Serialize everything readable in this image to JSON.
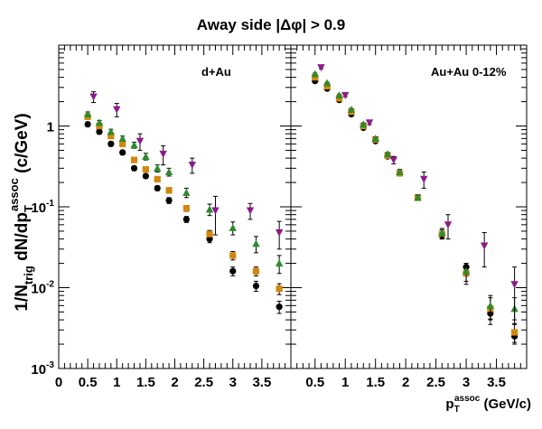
{
  "chart_data": {
    "type": "scatter",
    "title": "Away side |Δφ| > 0.9",
    "ylabel": {
      "prefix": "1/N",
      "prefix_sub": "trig",
      "middle": " dN/dp",
      "middle_sub": "T",
      "middle_sup": "assoc",
      "suffix": " (c/GeV)"
    },
    "xlabel": {
      "main": "p",
      "sub": "T",
      "sup": "assoc",
      "suffix": " (GeV/c)"
    },
    "y_scale": "log",
    "ylim": [
      0.001,
      10
    ],
    "y_ticks": [
      {
        "value": 0.001,
        "base": "10",
        "exp": "-3"
      },
      {
        "value": 0.01,
        "base": "10",
        "exp": "-2"
      },
      {
        "value": 0.1,
        "base": "10",
        "exp": "-1"
      },
      {
        "value": 1,
        "base": "1",
        "exp": ""
      }
    ],
    "panels": [
      {
        "label": "d+Au",
        "xlim": [
          0,
          4.0
        ],
        "x_tick_labels": [
          "0",
          "0.5",
          "1",
          "1.5",
          "2",
          "2.5",
          "3",
          "3.5"
        ],
        "x_tick_values": [
          0,
          0.5,
          1,
          1.5,
          2,
          2.5,
          3,
          3.5
        ],
        "series": [
          {
            "marker": "circle",
            "color": "#000000",
            "x": [
              0.5,
              0.7,
              0.9,
              1.1,
              1.3,
              1.5,
              1.7,
              1.9,
              2.2,
              2.6,
              3.0,
              3.4,
              3.8
            ],
            "y": [
              1.05,
              0.85,
              0.6,
              0.47,
              0.3,
              0.24,
              0.17,
              0.12,
              0.07,
              0.04,
              0.016,
              0.0105,
              0.0058
            ],
            "err": [
              0.07,
              0.06,
              0.04,
              0.03,
              0.02,
              0.015,
              0.012,
              0.01,
              0.006,
              0.004,
              0.002,
              0.0015,
              0.001
            ]
          },
          {
            "marker": "square",
            "color": "#d4870f",
            "x": [
              0.5,
              0.7,
              0.9,
              1.1,
              1.3,
              1.5,
              1.7,
              1.9,
              2.2,
              2.6,
              3.0,
              3.4,
              3.8
            ],
            "y": [
              1.3,
              1.0,
              0.75,
              0.6,
              0.38,
              0.29,
              0.22,
              0.16,
              0.096,
              0.046,
              0.025,
              0.016,
              0.0097
            ],
            "err": [
              0.08,
              0.07,
              0.05,
              0.04,
              0.025,
              0.02,
              0.015,
              0.012,
              0.008,
              0.005,
              0.003,
              0.002,
              0.0015
            ]
          },
          {
            "marker": "triangle-up",
            "color": "#2e8b2e",
            "x": [
              0.5,
              0.7,
              0.9,
              1.1,
              1.3,
              1.5,
              1.7,
              1.9,
              2.2,
              2.6,
              3.0,
              3.4,
              3.8
            ],
            "y": [
              1.4,
              1.1,
              0.85,
              0.7,
              0.58,
              0.42,
              0.3,
              0.27,
              0.15,
              0.093,
              0.055,
              0.035,
              0.02
            ],
            "err": [
              0.09,
              0.07,
              0.06,
              0.05,
              0.05,
              0.04,
              0.03,
              0.03,
              0.02,
              0.015,
              0.01,
              0.008,
              0.005
            ]
          },
          {
            "marker": "triangle-down",
            "color": "#8b1a8b",
            "x": [
              0.6,
              1.0,
              1.4,
              1.8,
              2.3,
              2.7,
              3.3,
              3.8
            ],
            "y": [
              2.3,
              1.6,
              0.65,
              0.45,
              0.33,
              0.09,
              0.09,
              0.048
            ],
            "err": [
              0.35,
              0.3,
              0.15,
              0.12,
              0.07,
              0.045,
              0.02,
              0.018
            ]
          }
        ]
      },
      {
        "label": "Au+Au 0-12%",
        "xlim": [
          0.1,
          4.0
        ],
        "x_tick_labels": [
          "0.5",
          "1",
          "1.5",
          "2",
          "2.5",
          "3",
          "3.5"
        ],
        "x_tick_values": [
          0.5,
          1,
          1.5,
          2,
          2.5,
          3,
          3.5
        ],
        "series": [
          {
            "marker": "circle",
            "color": "#000000",
            "x": [
              0.5,
              0.7,
              0.9,
              1.1,
              1.3,
              1.5,
              1.7,
              1.9,
              2.2,
              2.6,
              3.0,
              3.4,
              3.8
            ],
            "y": [
              3.6,
              2.9,
              2.1,
              1.4,
              0.95,
              0.65,
              0.42,
              0.26,
              0.13,
              0.044,
              0.018,
              0.0048,
              0.0025
            ],
            "err": [
              0.1,
              0.08,
              0.06,
              0.05,
              0.04,
              0.03,
              0.02,
              0.02,
              0.01,
              0.004,
              0.002,
              0.0007,
              0.0004
            ]
          },
          {
            "marker": "square",
            "color": "#d4870f",
            "x": [
              0.5,
              0.7,
              0.9,
              1.1,
              1.3,
              1.5,
              1.7,
              1.9,
              2.2,
              2.6,
              3.0,
              3.4,
              3.8
            ],
            "y": [
              4.0,
              3.1,
              2.2,
              1.5,
              1.0,
              0.68,
              0.43,
              0.26,
              0.13,
              0.046,
              0.015,
              0.0055,
              0.0028
            ],
            "err": [
              0.1,
              0.08,
              0.06,
              0.05,
              0.04,
              0.03,
              0.02,
              0.02,
              0.01,
              0.006,
              0.004,
              0.002,
              0.0008
            ]
          },
          {
            "marker": "triangle-up",
            "color": "#2e8b2e",
            "x": [
              0.5,
              0.7,
              0.9,
              1.1,
              1.3,
              1.5,
              1.7,
              1.9,
              2.2,
              2.6,
              3.0,
              3.4,
              3.8
            ],
            "y": [
              4.4,
              3.4,
              2.4,
              1.6,
              1.05,
              0.7,
              0.45,
              0.27,
              0.13,
              0.048,
              0.016,
              0.006,
              0.0055
            ],
            "err": [
              0.12,
              0.09,
              0.07,
              0.05,
              0.04,
              0.03,
              0.02,
              0.02,
              0.01,
              0.006,
              0.004,
              0.002,
              0.002
            ]
          },
          {
            "marker": "triangle-down",
            "color": "#8b1a8b",
            "x": [
              0.6,
              1.0,
              1.4,
              1.8,
              2.3,
              2.7,
              3.3,
              3.8
            ],
            "y": [
              5.3,
              2.4,
              1.1,
              0.38,
              0.22,
              0.06,
              0.033,
              0.011
            ],
            "err": [
              0.2,
              0.1,
              0.06,
              0.04,
              0.05,
              0.02,
              0.015,
              0.007
            ]
          }
        ]
      }
    ]
  }
}
